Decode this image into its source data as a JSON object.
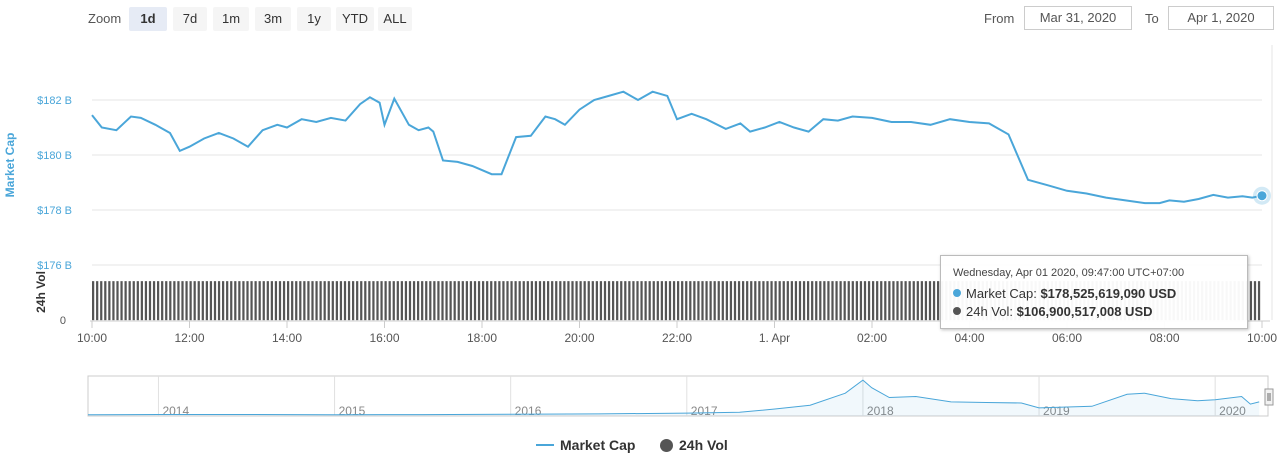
{
  "zoom": {
    "label": "Zoom",
    "buttons": [
      "1d",
      "7d",
      "1m",
      "3m",
      "1y",
      "YTD",
      "ALL"
    ],
    "active": "1d"
  },
  "range": {
    "from_label": "From",
    "from_value": "Mar 31, 2020",
    "to_label": "To",
    "to_value": "Apr 1, 2020"
  },
  "colors": {
    "market_cap": "#4aa6d9",
    "volume": "#555555",
    "grid": "#e6e6e6",
    "navigator": "#4aa6d9"
  },
  "chart_data": {
    "type": "line",
    "xlabel": "",
    "ylabel": "Market Cap",
    "y2label": "24h Vol",
    "ylim": [
      176,
      183
    ],
    "y_ticks": [
      "$182 B",
      "$180 B",
      "$178 B",
      "$176 B"
    ],
    "vol_tick": "0",
    "x_ticks": [
      "10:00",
      "12:00",
      "14:00",
      "16:00",
      "18:00",
      "20:00",
      "22:00",
      "1. Apr",
      "02:00",
      "04:00",
      "06:00",
      "08:00",
      "10:00"
    ],
    "series": [
      {
        "name": "Market Cap",
        "unit": "billion USD",
        "x_hours": [
          0,
          0.2,
          0.5,
          0.8,
          1.0,
          1.3,
          1.6,
          1.8,
          2.0,
          2.3,
          2.6,
          2.9,
          3.2,
          3.5,
          3.8,
          4.0,
          4.3,
          4.6,
          4.9,
          5.2,
          5.5,
          5.7,
          5.9,
          6.0,
          6.2,
          6.5,
          6.7,
          6.9,
          7.0,
          7.2,
          7.5,
          7.8,
          8.2,
          8.4,
          8.7,
          9.0,
          9.3,
          9.5,
          9.7,
          10.0,
          10.3,
          10.6,
          10.9,
          11.2,
          11.5,
          11.8,
          12.0,
          12.3,
          12.6,
          13.0,
          13.3,
          13.5,
          13.8,
          14.1,
          14.4,
          14.7,
          15.0,
          15.3,
          15.6,
          16.0,
          16.4,
          16.8,
          17.2,
          17.6,
          18.0,
          18.4,
          18.8,
          19.2,
          19.6,
          20.0,
          20.4,
          20.8,
          21.2,
          21.6,
          21.9,
          22.1,
          22.4,
          22.7,
          23.0,
          23.3,
          23.6,
          23.8,
          24.0
        ],
        "values": [
          181.45,
          181.0,
          180.9,
          181.4,
          181.35,
          181.1,
          180.8,
          180.15,
          180.3,
          180.6,
          180.8,
          180.6,
          180.3,
          180.9,
          181.1,
          181.0,
          181.3,
          181.2,
          181.35,
          181.25,
          181.85,
          182.1,
          181.9,
          181.1,
          182.05,
          181.1,
          180.9,
          181.0,
          180.85,
          179.8,
          179.75,
          179.6,
          179.3,
          179.3,
          180.65,
          180.7,
          181.4,
          181.3,
          181.1,
          181.65,
          182.0,
          182.15,
          182.3,
          182.0,
          182.3,
          182.15,
          181.3,
          181.5,
          181.3,
          180.95,
          181.15,
          180.85,
          181.0,
          181.2,
          181.0,
          180.85,
          181.3,
          181.25,
          181.4,
          181.35,
          181.2,
          181.2,
          181.1,
          181.3,
          181.2,
          181.15,
          180.75,
          179.1,
          178.9,
          178.7,
          178.6,
          178.45,
          178.35,
          178.25,
          178.25,
          178.35,
          178.3,
          178.4,
          178.55,
          178.45,
          178.5,
          178.45,
          178.52
        ]
      },
      {
        "name": "24h Vol",
        "unit": "USD",
        "bar_count": 288,
        "relative_height": 0.97
      }
    ],
    "grid": true,
    "legend_position": "bottom-center",
    "tooltip": {
      "date": "Wednesday, Apr 01 2020, 09:47:00 UTC+07:00",
      "rows": [
        {
          "label": "Market Cap:",
          "value": "$178,525,619,090 USD"
        },
        {
          "label": "24h Vol:",
          "value": "$106,900,517,008 USD"
        }
      ]
    },
    "navigator": {
      "years": [
        "2014",
        "2015",
        "2016",
        "2017",
        "2018",
        "2019",
        "2020"
      ],
      "series_billion_usd": [
        [
          2013.6,
          1.5
        ],
        [
          2014.0,
          5
        ],
        [
          2014.5,
          5
        ],
        [
          2015.0,
          3
        ],
        [
          2015.5,
          3.5
        ],
        [
          2016.0,
          6
        ],
        [
          2016.5,
          10
        ],
        [
          2017.0,
          17
        ],
        [
          2017.3,
          25
        ],
        [
          2017.5,
          55
        ],
        [
          2017.7,
          90
        ],
        [
          2017.9,
          200
        ],
        [
          2018.0,
          320
        ],
        [
          2018.05,
          250
        ],
        [
          2018.15,
          160
        ],
        [
          2018.3,
          170
        ],
        [
          2018.5,
          120
        ],
        [
          2018.7,
          115
        ],
        [
          2018.9,
          110
        ],
        [
          2019.0,
          65
        ],
        [
          2019.3,
          80
        ],
        [
          2019.5,
          190
        ],
        [
          2019.6,
          200
        ],
        [
          2019.75,
          150
        ],
        [
          2019.9,
          130
        ],
        [
          2020.0,
          140
        ],
        [
          2020.15,
          170
        ],
        [
          2020.2,
          100
        ],
        [
          2020.25,
          120
        ]
      ]
    }
  },
  "legend": {
    "items": [
      {
        "label": "Market Cap"
      },
      {
        "label": "24h Vol"
      }
    ]
  }
}
